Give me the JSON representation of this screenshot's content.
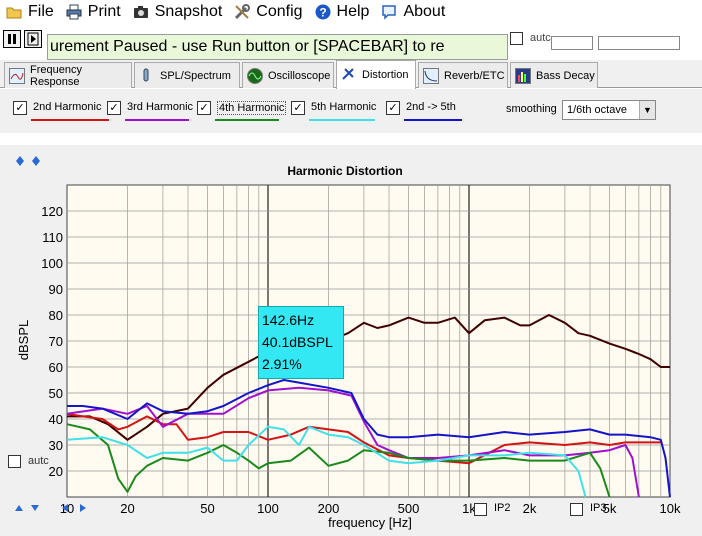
{
  "menu": [
    {
      "label": "File",
      "icon": "folder-icon"
    },
    {
      "label": "Print",
      "icon": "printer-icon"
    },
    {
      "label": "Snapshot",
      "icon": "camera-icon"
    },
    {
      "label": "Config",
      "icon": "tools-icon"
    },
    {
      "label": "Help",
      "icon": "help-icon"
    },
    {
      "label": "About",
      "icon": "speech-bubble-icon"
    }
  ],
  "status": {
    "message": "urement Paused - use Run button or [SPACEBAR] to re",
    "auto_label": "autc"
  },
  "tabs": [
    {
      "label": "Frequency Response",
      "icon": "frequency-response-icon"
    },
    {
      "label": "SPL/Spectrum",
      "icon": "spl-spectrum-icon"
    },
    {
      "label": "Oscilloscope",
      "icon": "oscilloscope-icon"
    },
    {
      "label": "Distortion",
      "icon": "distortion-icon"
    },
    {
      "label": "Reverb/ETC",
      "icon": "reverb-icon"
    },
    {
      "label": "Bass Decay",
      "icon": "bass-decay-icon"
    }
  ],
  "harmonics": [
    {
      "label": "2nd Harmonic",
      "checked": true,
      "color": "#d21414"
    },
    {
      "label": "3rd Harmonic",
      "checked": true,
      "color": "#a010d0"
    },
    {
      "label": "4th Harmonic",
      "checked": true,
      "color": "#1a8a1a"
    },
    {
      "label": "5th Harmonic",
      "checked": true,
      "color": "#40e0e8"
    },
    {
      "label": "2nd -> 5th",
      "checked": true,
      "color": "#1414c8"
    }
  ],
  "smoothing": {
    "label": "smoothing",
    "value": "1/6th octave"
  },
  "chart_data": {
    "type": "line",
    "title": "Harmonic Distortion",
    "xlabel": "frequency [Hz]",
    "ylabel": "dBSPL",
    "xscale": "log",
    "xlim": [
      10,
      10000
    ],
    "ylim": [
      10,
      130
    ],
    "y_ticks": [
      20,
      30,
      40,
      50,
      60,
      70,
      80,
      90,
      100,
      110,
      120
    ],
    "x_tick_labels": [
      {
        "value": 10,
        "label": "10"
      },
      {
        "value": 20,
        "label": "20"
      },
      {
        "value": 50,
        "label": "50"
      },
      {
        "value": 100,
        "label": "100"
      },
      {
        "value": 200,
        "label": "200"
      },
      {
        "value": 500,
        "label": "500"
      },
      {
        "value": 1000,
        "label": "1k"
      },
      {
        "value": 2000,
        "label": "2k"
      },
      {
        "value": 5000,
        "label": "5k"
      },
      {
        "value": 10000,
        "label": "10k"
      }
    ],
    "grid": true,
    "series": [
      {
        "color": "#400000",
        "points": [
          [
            10,
            41
          ],
          [
            13,
            41
          ],
          [
            16,
            38
          ],
          [
            20,
            32
          ],
          [
            25,
            37
          ],
          [
            30,
            42
          ],
          [
            40,
            44
          ],
          [
            50,
            52
          ],
          [
            60,
            57
          ],
          [
            80,
            62
          ],
          [
            100,
            66
          ],
          [
            120,
            69
          ],
          [
            142.6,
            71
          ],
          [
            170,
            71
          ],
          [
            200,
            70
          ],
          [
            250,
            73
          ],
          [
            300,
            77
          ],
          [
            350,
            75
          ],
          [
            400,
            76
          ],
          [
            500,
            79
          ],
          [
            600,
            77
          ],
          [
            700,
            77
          ],
          [
            850,
            79
          ],
          [
            1000,
            73
          ],
          [
            1200,
            78
          ],
          [
            1500,
            79
          ],
          [
            1800,
            76
          ],
          [
            2000,
            76
          ],
          [
            2500,
            80
          ],
          [
            3000,
            77
          ],
          [
            3500,
            73
          ],
          [
            4000,
            72
          ],
          [
            5000,
            69
          ],
          [
            6000,
            67
          ],
          [
            7000,
            65
          ],
          [
            8000,
            63
          ],
          [
            9000,
            60
          ],
          [
            10000,
            60
          ]
        ]
      },
      {
        "color": "#d21414",
        "points": [
          [
            10,
            42
          ],
          [
            12,
            41
          ],
          [
            15,
            40
          ],
          [
            18,
            36
          ],
          [
            20,
            37
          ],
          [
            25,
            41
          ],
          [
            30,
            38
          ],
          [
            35,
            38
          ],
          [
            40,
            32
          ],
          [
            50,
            33
          ],
          [
            60,
            35
          ],
          [
            80,
            35
          ],
          [
            100,
            32
          ],
          [
            130,
            34
          ],
          [
            160,
            37
          ],
          [
            200,
            36
          ],
          [
            250,
            35
          ],
          [
            300,
            31
          ],
          [
            400,
            26
          ],
          [
            500,
            25
          ],
          [
            700,
            24
          ],
          [
            1000,
            23
          ],
          [
            1500,
            30
          ],
          [
            2000,
            31
          ],
          [
            3000,
            30
          ],
          [
            4000,
            31
          ],
          [
            5000,
            30
          ],
          [
            6000,
            31
          ],
          [
            8000,
            31
          ],
          [
            9000,
            31
          ]
        ]
      },
      {
        "color": "#a010d0",
        "points": [
          [
            10,
            42
          ],
          [
            15,
            44
          ],
          [
            20,
            42
          ],
          [
            25,
            45
          ],
          [
            30,
            37
          ],
          [
            40,
            42
          ],
          [
            60,
            42
          ],
          [
            80,
            48
          ],
          [
            100,
            51
          ],
          [
            142.6,
            52
          ],
          [
            200,
            51
          ],
          [
            260,
            49
          ],
          [
            300,
            39
          ],
          [
            350,
            30
          ],
          [
            400,
            28
          ],
          [
            500,
            25
          ],
          [
            700,
            25
          ],
          [
            1000,
            26
          ],
          [
            1500,
            28
          ],
          [
            2000,
            26
          ],
          [
            3000,
            26
          ],
          [
            4000,
            27
          ],
          [
            5000,
            28
          ],
          [
            6000,
            30
          ],
          [
            6500,
            25
          ],
          [
            7000,
            10
          ]
        ]
      },
      {
        "color": "#1a8a1a",
        "points": [
          [
            10,
            38
          ],
          [
            13,
            36
          ],
          [
            16,
            30
          ],
          [
            18,
            17
          ],
          [
            20,
            12
          ],
          [
            22,
            18
          ],
          [
            25,
            22
          ],
          [
            30,
            25
          ],
          [
            40,
            24
          ],
          [
            50,
            27
          ],
          [
            60,
            30
          ],
          [
            70,
            27
          ],
          [
            80,
            24
          ],
          [
            90,
            21
          ],
          [
            100,
            23
          ],
          [
            130,
            24
          ],
          [
            160,
            29
          ],
          [
            200,
            22
          ],
          [
            250,
            24
          ],
          [
            300,
            28
          ],
          [
            400,
            27
          ],
          [
            500,
            25
          ],
          [
            700,
            24
          ],
          [
            1000,
            24
          ],
          [
            1500,
            25
          ],
          [
            2000,
            24
          ],
          [
            3000,
            24
          ],
          [
            4000,
            27
          ],
          [
            4500,
            21
          ],
          [
            5000,
            10
          ]
        ]
      },
      {
        "color": "#40e0e8",
        "points": [
          [
            10,
            32
          ],
          [
            15,
            33
          ],
          [
            20,
            30
          ],
          [
            25,
            25
          ],
          [
            30,
            27
          ],
          [
            40,
            27
          ],
          [
            50,
            29
          ],
          [
            60,
            24
          ],
          [
            70,
            24
          ],
          [
            80,
            30
          ],
          [
            100,
            37
          ],
          [
            120,
            36
          ],
          [
            142.6,
            30
          ],
          [
            160,
            37
          ],
          [
            200,
            34
          ],
          [
            250,
            33
          ],
          [
            300,
            30
          ],
          [
            400,
            24
          ],
          [
            500,
            23
          ],
          [
            700,
            24
          ],
          [
            1000,
            26
          ],
          [
            1500,
            26
          ],
          [
            2000,
            27
          ],
          [
            3000,
            26
          ],
          [
            3500,
            20
          ],
          [
            3800,
            10
          ]
        ]
      },
      {
        "color": "#1414c8",
        "points": [
          [
            10,
            45
          ],
          [
            12,
            45
          ],
          [
            15,
            44
          ],
          [
            20,
            40
          ],
          [
            25,
            46
          ],
          [
            30,
            43
          ],
          [
            40,
            42
          ],
          [
            50,
            43
          ],
          [
            60,
            45
          ],
          [
            80,
            50
          ],
          [
            100,
            53
          ],
          [
            120,
            55
          ],
          [
            142.6,
            54
          ],
          [
            200,
            52
          ],
          [
            260,
            50
          ],
          [
            300,
            40
          ],
          [
            350,
            34
          ],
          [
            400,
            33
          ],
          [
            500,
            33
          ],
          [
            700,
            34
          ],
          [
            1000,
            33
          ],
          [
            1500,
            35
          ],
          [
            2000,
            34
          ],
          [
            3000,
            35
          ],
          [
            4000,
            36
          ],
          [
            5000,
            34
          ],
          [
            6000,
            34
          ],
          [
            8000,
            33
          ],
          [
            9000,
            32
          ],
          [
            9500,
            25
          ],
          [
            10000,
            10
          ]
        ]
      }
    ]
  },
  "tooltip": {
    "freq": "142.6Hz",
    "level": "40.1dBSPL",
    "percent": "2.91%"
  },
  "bottom": {
    "auto_label": "autc",
    "ip2_label": "IP2",
    "ip3_label": "IP3"
  }
}
